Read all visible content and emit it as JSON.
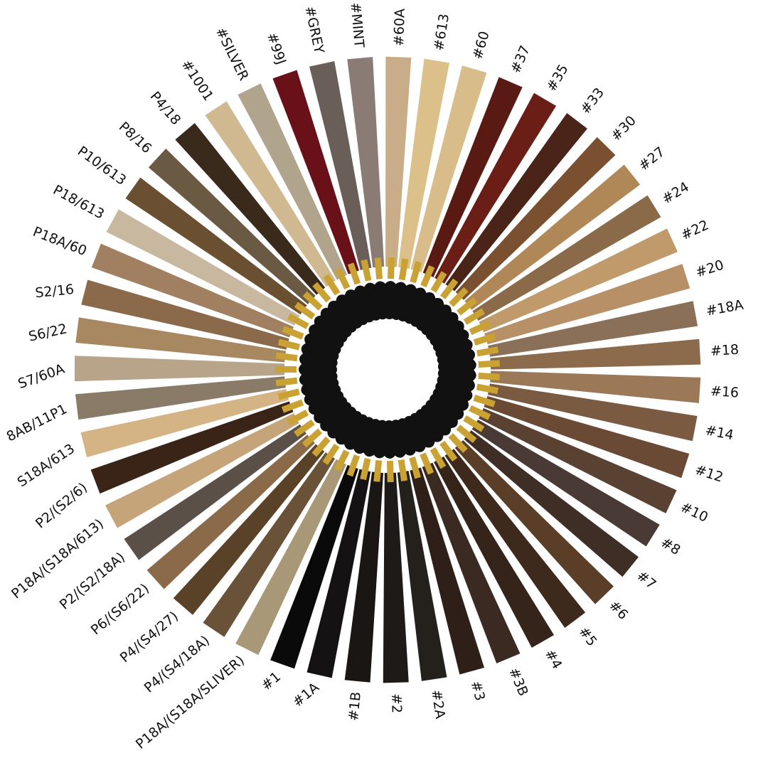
{
  "swatches": [
    {
      "label": "#60A",
      "color": "#c8ad88"
    },
    {
      "label": "#613",
      "color": "#dcc08a"
    },
    {
      "label": "#60",
      "color": "#d8bc8a"
    },
    {
      "label": "#37",
      "color": "#5a1a14"
    },
    {
      "label": "#35",
      "color": "#6a1e16"
    },
    {
      "label": "#33",
      "color": "#4a2418"
    },
    {
      "label": "#30",
      "color": "#7a5030"
    },
    {
      "label": "#27",
      "color": "#b08858"
    },
    {
      "label": "#24",
      "color": "#8a6a48"
    },
    {
      "label": "#22",
      "color": "#c09a6a"
    },
    {
      "label": "#20",
      "color": "#b89068"
    },
    {
      "label": "#18A",
      "color": "#8a7058"
    },
    {
      "label": "#18",
      "color": "#8c6a4c"
    },
    {
      "label": "#16",
      "color": "#9a7858"
    },
    {
      "label": "#14",
      "color": "#7a5a40"
    },
    {
      "label": "#12",
      "color": "#6a4a34"
    },
    {
      "label": "#10",
      "color": "#5a4232"
    },
    {
      "label": "#8",
      "color": "#4a3a36"
    },
    {
      "label": "#7",
      "color": "#3e2e26"
    },
    {
      "label": "#6",
      "color": "#5a3e28"
    },
    {
      "label": "#5",
      "color": "#3e2a1c"
    },
    {
      "label": "#4",
      "color": "#34241a"
    },
    {
      "label": "#3B",
      "color": "#3a2a22"
    },
    {
      "label": "#3",
      "color": "#2e2018"
    },
    {
      "label": "#2A",
      "color": "#24201c"
    },
    {
      "label": "#2",
      "color": "#1e1a18"
    },
    {
      "label": "#1B",
      "color": "#1a1614"
    },
    {
      "label": "#1A",
      "color": "#141212"
    },
    {
      "label": "#1",
      "color": "#0a0a0a"
    },
    {
      "label": "P18A/(S18A/SLIVER)",
      "color": "#a89878"
    },
    {
      "label": "P4/(S4/18A)",
      "color": "#6a5238"
    },
    {
      "label": "P4/(S4/27)",
      "color": "#5a4228"
    },
    {
      "label": "P6/(S6/22)",
      "color": "#8a6a48"
    },
    {
      "label": "P2/(S2/18A)",
      "color": "#5a5048"
    },
    {
      "label": "P18A/(S18A/613)",
      "color": "#c4a478"
    },
    {
      "label": "P2/(S2/6)",
      "color": "#3a2418"
    },
    {
      "label": "S18A/613",
      "color": "#d4b484"
    },
    {
      "label": "8AB/11P1",
      "color": "#8a7a68"
    },
    {
      "label": "S7/60A",
      "color": "#b8a488"
    },
    {
      "label": "S6/22",
      "color": "#a88860"
    },
    {
      "label": "S2/16",
      "color": "#8a6a4a"
    },
    {
      "label": "P18A/60",
      "color": "#a08060"
    },
    {
      "label": "P18/613",
      "color": "#c8b8a0"
    },
    {
      "label": "P10/613",
      "color": "#6a5030"
    },
    {
      "label": "P8/16",
      "color": "#6a5a44"
    },
    {
      "label": "P4/18",
      "color": "#3a2a1c"
    },
    {
      "label": "#1001",
      "color": "#d0b890"
    },
    {
      "label": "#SILVER",
      "color": "#b0a48c"
    },
    {
      "label": "#99J",
      "color": "#6a1018"
    },
    {
      "label": "#GREY",
      "color": "#6a5e58"
    },
    {
      "label": "#MINT",
      "color": "#8a7c74"
    }
  ],
  "ring": {
    "tag_color": "#111111",
    "connector_color": "#c9a233"
  }
}
